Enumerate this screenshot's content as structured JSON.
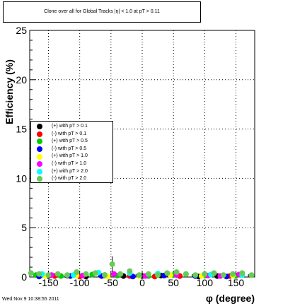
{
  "chart_data": {
    "type": "scatter",
    "title": "Clone  over all for Global Tracks",
    "title_overlay": "|η| < 1.0 at pT > 0.11",
    "xlabel": "φ (degree)",
    "ylabel": "Efficiency (%)",
    "xlim": [
      -180,
      180
    ],
    "ylim": [
      0,
      25
    ],
    "x_ticks": [
      -150,
      -100,
      -50,
      0,
      50,
      100,
      150
    ],
    "y_ticks": [
      0,
      5,
      10,
      15,
      20,
      25
    ],
    "grid": true,
    "legend_position": "left-middle",
    "series": [
      {
        "name": "(+) with pT > 0.1",
        "color": "#000000",
        "x": [
          -150,
          -120,
          -90,
          -60,
          -30,
          0,
          30,
          60,
          90,
          120,
          150
        ],
        "y": [
          0.1,
          0.15,
          0.05,
          0.2,
          0.1,
          0.1,
          0.15,
          0.1,
          0.05,
          0.1,
          0.15
        ]
      },
      {
        "name": "(-) with pT > 0.1",
        "color": "#ff0000",
        "x": [
          -140,
          -100,
          -60,
          -20,
          20,
          60,
          100,
          140
        ],
        "y": [
          0.1,
          0.05,
          0.15,
          0.1,
          0.05,
          0.1,
          0.15,
          0.1
        ]
      },
      {
        "name": "(+) with pT > 0.5",
        "color": "#00cc00",
        "x": [
          -170,
          -130,
          -80,
          -40,
          10,
          50,
          100,
          150
        ],
        "y": [
          0.2,
          0.1,
          0.25,
          0.15,
          0.1,
          0.2,
          0.15,
          0.1
        ]
      },
      {
        "name": "(-) with pT > 0.5",
        "color": "#0000ff",
        "x": [
          -165,
          -115,
          -65,
          -15,
          35,
          85,
          135
        ],
        "y": [
          0.05,
          0.1,
          0.1,
          0.05,
          0.15,
          0.1,
          0.05
        ]
      },
      {
        "name": "(+) with pT > 1.0",
        "color": "#ffff00",
        "x": [
          -155,
          -105,
          -55,
          -5,
          45,
          95,
          145
        ],
        "y": [
          0.1,
          0.15,
          0.05,
          0.1,
          0.2,
          0.1,
          0.15
        ]
      },
      {
        "name": "(-) with pT > 1.0",
        "color": "#ff00ff",
        "x": [
          -145,
          -95,
          -45,
          5,
          55,
          105,
          125,
          155
        ],
        "y": [
          0.2,
          0.15,
          0.3,
          0.1,
          0.2,
          0.15,
          0.1,
          0.25
        ]
      },
      {
        "name": "(+) with pT > 2.0",
        "color": "#00ffff",
        "x": [
          -160,
          -110,
          -70,
          -20,
          25,
          70,
          110,
          160
        ],
        "y": [
          0.3,
          0.2,
          0.45,
          0.4,
          0.35,
          0.3,
          0.25,
          0.2
        ]
      },
      {
        "name": "(-) with pT > 2.0",
        "color": "#66cc55",
        "x": [
          -178,
          -165,
          -150,
          -135,
          -120,
          -105,
          -90,
          -75,
          -60,
          -48,
          -35,
          -20,
          -5,
          10,
          25,
          40,
          55,
          70,
          85,
          100,
          115,
          130,
          145,
          160,
          175
        ],
        "y": [
          0.4,
          0.3,
          0.2,
          0.3,
          0.2,
          0.5,
          0.3,
          0.4,
          0.2,
          1.3,
          0.3,
          0.6,
          0.2,
          0.3,
          0.2,
          0.4,
          0.5,
          0.3,
          0.2,
          0.3,
          0.4,
          0.2,
          0.3,
          0.4,
          0.2
        ],
        "yerr_index": 9,
        "yerr": 0.8
      }
    ]
  },
  "footer": {
    "timestamp": "Wed Nov  9 10:38:55 2011"
  }
}
